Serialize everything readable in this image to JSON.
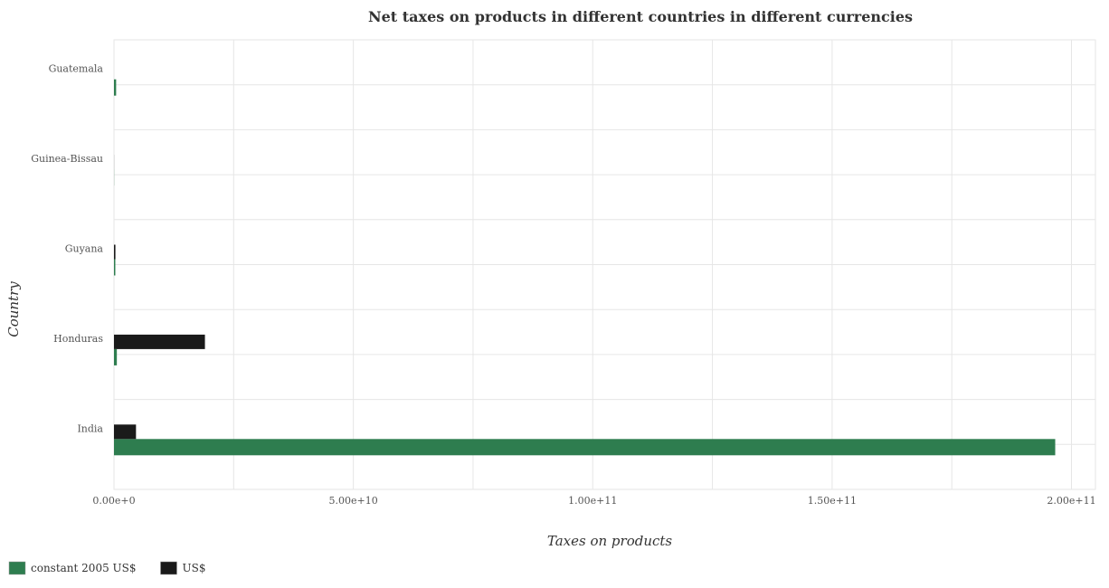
{
  "chart_data": {
    "type": "bar",
    "orientation": "horizontal",
    "title": "Net taxes on products in different countries in different currencies",
    "xlabel": "Taxes on products",
    "ylabel": "Country",
    "categories": [
      "Guatemala",
      "Guinea-Bissau",
      "Guyana",
      "Honduras",
      "India"
    ],
    "series": [
      {
        "name": "constant 2005 US$",
        "color": "#2e7d4f",
        "values": [
          450000000,
          25000000,
          280000000,
          600000000,
          196600000000
        ]
      },
      {
        "name": "US$",
        "color": "#1a1a1a",
        "values": [
          0,
          15000000,
          300000000,
          19000000000,
          4600000000
        ]
      }
    ],
    "xlim": [
      0,
      205000000000
    ],
    "xticks": [
      0,
      50000000000,
      100000000000,
      150000000000,
      200000000000
    ],
    "xtick_labels": [
      "0.00e+0",
      "5.00e+10",
      "1.00e+11",
      "1.50e+11",
      "2.00e+11"
    ],
    "grid": true,
    "legend_position": "bottom-left"
  }
}
